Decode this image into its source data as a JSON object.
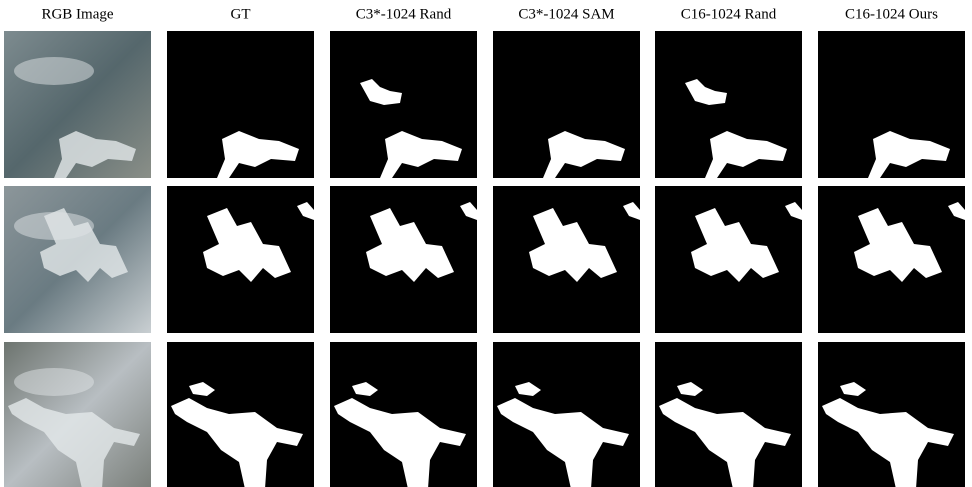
{
  "columns": [
    "RGB Image",
    "GT",
    "C3*-1024 Rand",
    "C3*-1024 SAM",
    "C16-1024 Rand",
    "C16-1024 Ours"
  ]
}
